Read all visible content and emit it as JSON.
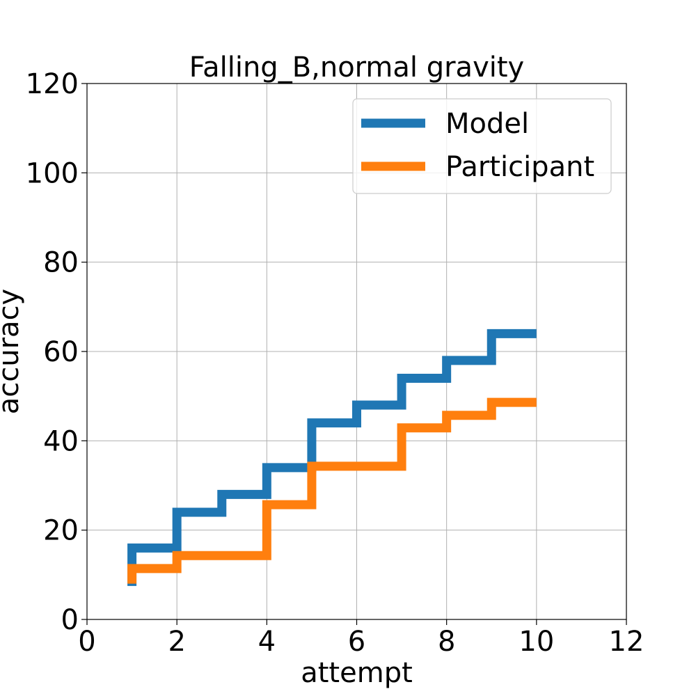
{
  "chart_data": {
    "type": "line",
    "step": "post",
    "title": "Falling_B,normal gravity",
    "xlabel": "attempt",
    "ylabel": "accuracy",
    "xlim": [
      0,
      12
    ],
    "ylim": [
      0,
      120
    ],
    "xticks": [
      0,
      2,
      4,
      6,
      8,
      10,
      12
    ],
    "yticks": [
      0,
      20,
      40,
      60,
      80,
      100,
      120
    ],
    "grid": true,
    "legend_position": "top-right",
    "series": [
      {
        "name": "Model",
        "color": "#1f77b4",
        "x": [
          1,
          1,
          2,
          3,
          4,
          5,
          6,
          7,
          8,
          9,
          10
        ],
        "y": [
          7.5,
          16,
          24,
          28,
          34,
          44,
          48,
          54,
          58,
          64,
          64
        ]
      },
      {
        "name": "Participant",
        "color": "#ff7f0e",
        "x": [
          1,
          1,
          2,
          4,
          5,
          7,
          8,
          9,
          10
        ],
        "y": [
          8,
          11.4,
          14.3,
          25.7,
          34.3,
          42.9,
          45.7,
          48.6,
          48.6
        ]
      }
    ]
  }
}
